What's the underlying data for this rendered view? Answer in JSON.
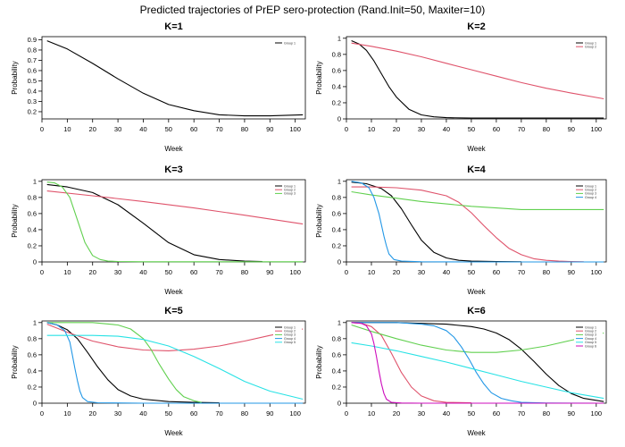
{
  "title": "Predicted trajectories of PrEP sero-protection (Rand.Init=50, Maxiter=10)",
  "colors": {
    "group1": "#000000",
    "group2": "#DF536B",
    "group3": "#61D04F",
    "group4": "#2297E6",
    "group5": "#28E2E5",
    "group6": "#CD0BBC"
  },
  "chart_data": [
    {
      "type": "line",
      "title": "K=1",
      "xlabel": "Week",
      "ylabel": "Probability",
      "xlim": [
        0,
        104
      ],
      "ylim": [
        0.13,
        0.93
      ],
      "xticks": [
        0,
        10,
        20,
        30,
        40,
        50,
        60,
        70,
        80,
        90,
        100
      ],
      "yticks": [
        0.2,
        0.3,
        0.4,
        0.5,
        0.6,
        0.7,
        0.8,
        0.9
      ],
      "ytick_labels": [
        "0.2",
        "0.3",
        "0.4",
        "0.5",
        "0.6",
        "0.7",
        "0.8",
        "0.9"
      ],
      "legend_position": "top-right",
      "series": [
        {
          "name": "Group 1",
          "color": "#000000",
          "x": [
            2,
            10,
            20,
            30,
            40,
            50,
            60,
            70,
            80,
            90,
            103
          ],
          "y": [
            0.89,
            0.81,
            0.67,
            0.52,
            0.38,
            0.27,
            0.21,
            0.17,
            0.16,
            0.16,
            0.17
          ]
        }
      ]
    },
    {
      "type": "line",
      "title": "K=2",
      "xlabel": "Week",
      "ylabel": "Probability",
      "xlim": [
        0,
        104
      ],
      "ylim": [
        0,
        1.02
      ],
      "xticks": [
        0,
        10,
        20,
        30,
        40,
        50,
        60,
        70,
        80,
        90,
        100
      ],
      "yticks": [
        0,
        0.2,
        0.4,
        0.6,
        0.8,
        1
      ],
      "ytick_labels": [
        "0",
        "0.2",
        "0.4",
        "0.6",
        "0.8",
        "1"
      ],
      "legend_position": "top-right",
      "series": [
        {
          "name": "Group 1",
          "color": "#000000",
          "x": [
            2,
            5,
            8,
            11,
            14,
            17,
            20,
            25,
            30,
            35,
            40,
            50,
            60,
            70,
            80,
            90,
            103
          ],
          "y": [
            0.97,
            0.93,
            0.85,
            0.72,
            0.56,
            0.4,
            0.27,
            0.12,
            0.05,
            0.025,
            0.015,
            0.01,
            0.01,
            0.01,
            0.01,
            0.01,
            0.01
          ]
        },
        {
          "name": "Group 2",
          "color": "#DF536B",
          "x": [
            2,
            10,
            20,
            30,
            40,
            50,
            60,
            70,
            80,
            90,
            103
          ],
          "y": [
            0.94,
            0.9,
            0.84,
            0.77,
            0.69,
            0.61,
            0.53,
            0.45,
            0.38,
            0.32,
            0.25
          ]
        }
      ]
    },
    {
      "type": "line",
      "title": "K=3",
      "xlabel": "Week",
      "ylabel": "Probability",
      "xlim": [
        0,
        104
      ],
      "ylim": [
        0,
        1.02
      ],
      "xticks": [
        0,
        10,
        20,
        30,
        40,
        50,
        60,
        70,
        80,
        90,
        100
      ],
      "yticks": [
        0,
        0.2,
        0.4,
        0.6,
        0.8,
        1
      ],
      "ytick_labels": [
        "0",
        "0.2",
        "0.4",
        "0.6",
        "0.8",
        "1"
      ],
      "legend_position": "top-right",
      "series": [
        {
          "name": "Group 1",
          "color": "#000000",
          "x": [
            2,
            10,
            20,
            30,
            40,
            50,
            60,
            70,
            80,
            87
          ],
          "y": [
            0.96,
            0.93,
            0.86,
            0.71,
            0.48,
            0.24,
            0.09,
            0.03,
            0.01,
            0.005
          ]
        },
        {
          "name": "Group 2",
          "color": "#DF536B",
          "x": [
            2,
            20,
            40,
            60,
            80,
            103
          ],
          "y": [
            0.88,
            0.82,
            0.75,
            0.67,
            0.58,
            0.47
          ]
        },
        {
          "name": "Group 3",
          "color": "#61D04F",
          "x": [
            2,
            5,
            8,
            11,
            14,
            17,
            20,
            23,
            26,
            30,
            40,
            60,
            80,
            103
          ],
          "y": [
            0.99,
            0.98,
            0.93,
            0.8,
            0.52,
            0.24,
            0.08,
            0.03,
            0.01,
            0.005,
            0.002,
            0.002,
            0.002,
            0.002
          ]
        }
      ]
    },
    {
      "type": "line",
      "title": "K=4",
      "xlabel": "Week",
      "ylabel": "Probability",
      "xlim": [
        0,
        104
      ],
      "ylim": [
        0,
        1.02
      ],
      "xticks": [
        0,
        10,
        20,
        30,
        40,
        50,
        60,
        70,
        80,
        90,
        100
      ],
      "yticks": [
        0,
        0.2,
        0.4,
        0.6,
        0.8,
        1
      ],
      "ytick_labels": [
        "0",
        "0.2",
        "0.4",
        "0.6",
        "0.8",
        "1"
      ],
      "legend_position": "top-right",
      "series": [
        {
          "name": "Group 1",
          "color": "#000000",
          "x": [
            2,
            8,
            14,
            18,
            22,
            26,
            30,
            35,
            40,
            45,
            50,
            60,
            70
          ],
          "y": [
            0.99,
            0.97,
            0.91,
            0.82,
            0.66,
            0.46,
            0.27,
            0.12,
            0.05,
            0.02,
            0.01,
            0.005,
            0.002
          ]
        },
        {
          "name": "Group 2",
          "color": "#DF536B",
          "x": [
            2,
            10,
            20,
            30,
            40,
            45,
            50,
            55,
            60,
            65,
            70,
            75,
            80,
            85,
            90,
            95
          ],
          "y": [
            0.93,
            0.93,
            0.92,
            0.89,
            0.82,
            0.74,
            0.61,
            0.45,
            0.3,
            0.17,
            0.09,
            0.04,
            0.02,
            0.01,
            0.005,
            0.002
          ]
        },
        {
          "name": "Group 3",
          "color": "#61D04F",
          "x": [
            2,
            10,
            20,
            30,
            40,
            50,
            60,
            70,
            80,
            90,
            103
          ],
          "y": [
            0.87,
            0.83,
            0.79,
            0.75,
            0.72,
            0.69,
            0.67,
            0.65,
            0.65,
            0.65,
            0.65
          ]
        },
        {
          "name": "Group 4",
          "color": "#2297E6",
          "x": [
            2,
            6,
            9,
            11,
            13,
            14,
            15,
            16,
            17,
            19,
            22,
            30,
            50,
            103
          ],
          "y": [
            1.0,
            0.98,
            0.92,
            0.8,
            0.6,
            0.46,
            0.32,
            0.2,
            0.1,
            0.03,
            0.01,
            0.002,
            0.0,
            0.0
          ]
        }
      ]
    },
    {
      "type": "line",
      "title": "K=5",
      "xlabel": "Week",
      "ylabel": "Probability",
      "xlim": [
        0,
        104
      ],
      "ylim": [
        0,
        1.02
      ],
      "xticks": [
        0,
        10,
        20,
        30,
        40,
        50,
        60,
        70,
        80,
        90,
        100
      ],
      "yticks": [
        0,
        0.2,
        0.4,
        0.6,
        0.8,
        1
      ],
      "ytick_labels": [
        "0",
        "0.2",
        "0.4",
        "0.6",
        "0.8",
        "1"
      ],
      "legend_position": "top-right",
      "series": [
        {
          "name": "Group 1",
          "color": "#000000",
          "x": [
            2,
            6,
            10,
            14,
            18,
            22,
            26,
            30,
            35,
            40,
            50,
            60,
            70
          ],
          "y": [
            1.0,
            0.97,
            0.91,
            0.8,
            0.63,
            0.45,
            0.29,
            0.17,
            0.09,
            0.05,
            0.02,
            0.01,
            0.005
          ]
        },
        {
          "name": "Group 2",
          "color": "#DF536B",
          "x": [
            2,
            10,
            20,
            30,
            40,
            50,
            60,
            70,
            80,
            90,
            103
          ],
          "y": [
            0.98,
            0.88,
            0.77,
            0.7,
            0.66,
            0.65,
            0.67,
            0.71,
            0.77,
            0.84,
            0.92
          ]
        },
        {
          "name": "Group 3",
          "color": "#61D04F",
          "x": [
            2,
            10,
            20,
            30,
            35,
            40,
            43,
            46,
            50,
            53,
            56,
            60,
            63
          ],
          "y": [
            1.0,
            1.0,
            1.0,
            0.97,
            0.92,
            0.8,
            0.67,
            0.5,
            0.3,
            0.17,
            0.08,
            0.03,
            0.01
          ]
        },
        {
          "name": "Group 4",
          "color": "#2297E6",
          "x": [
            2,
            6,
            9,
            11,
            12,
            13,
            14,
            15,
            16,
            18,
            22,
            40,
            103
          ],
          "y": [
            1.0,
            0.97,
            0.9,
            0.76,
            0.6,
            0.43,
            0.28,
            0.15,
            0.07,
            0.02,
            0.005,
            0.0,
            0.0
          ]
        },
        {
          "name": "Group 5",
          "color": "#28E2E5",
          "x": [
            2,
            10,
            20,
            30,
            40,
            50,
            60,
            70,
            80,
            90,
            103
          ],
          "y": [
            0.84,
            0.84,
            0.84,
            0.83,
            0.79,
            0.71,
            0.58,
            0.43,
            0.27,
            0.15,
            0.05
          ]
        }
      ]
    },
    {
      "type": "line",
      "title": "K=6",
      "xlabel": "Week",
      "ylabel": "Probability",
      "xlim": [
        0,
        104
      ],
      "ylim": [
        0,
        1.02
      ],
      "xticks": [
        0,
        10,
        20,
        30,
        40,
        50,
        60,
        70,
        80,
        90,
        100
      ],
      "yticks": [
        0,
        0.2,
        0.4,
        0.6,
        0.8,
        1
      ],
      "ytick_labels": [
        "0",
        "0.2",
        "0.4",
        "0.6",
        "0.8",
        "1"
      ],
      "legend_position": "top-right",
      "series": [
        {
          "name": "Group 1",
          "color": "#000000",
          "x": [
            2,
            20,
            40,
            50,
            55,
            60,
            65,
            70,
            75,
            80,
            85,
            90,
            95,
            103
          ],
          "y": [
            1.0,
            1.0,
            0.98,
            0.95,
            0.92,
            0.87,
            0.79,
            0.67,
            0.52,
            0.36,
            0.22,
            0.12,
            0.06,
            0.02
          ]
        },
        {
          "name": "Group 2",
          "color": "#DF536B",
          "x": [
            2,
            6,
            10,
            14,
            18,
            22,
            26,
            30,
            35,
            40,
            50
          ],
          "y": [
            1.0,
            0.99,
            0.95,
            0.84,
            0.62,
            0.38,
            0.2,
            0.09,
            0.03,
            0.01,
            0.005
          ]
        },
        {
          "name": "Group 3",
          "color": "#61D04F",
          "x": [
            2,
            10,
            20,
            30,
            40,
            50,
            60,
            70,
            80,
            90,
            103
          ],
          "y": [
            0.97,
            0.89,
            0.8,
            0.72,
            0.66,
            0.63,
            0.63,
            0.66,
            0.71,
            0.78,
            0.87
          ]
        },
        {
          "name": "Group 4",
          "color": "#2297E6",
          "x": [
            2,
            20,
            30,
            35,
            40,
            43,
            46,
            49,
            52,
            55,
            58,
            62,
            66,
            70,
            80,
            103
          ],
          "y": [
            1.0,
            1.0,
            0.98,
            0.96,
            0.9,
            0.82,
            0.7,
            0.55,
            0.38,
            0.24,
            0.13,
            0.06,
            0.03,
            0.01,
            0.002,
            0.0
          ]
        },
        {
          "name": "Group 5",
          "color": "#28E2E5",
          "x": [
            2,
            10,
            20,
            30,
            40,
            50,
            60,
            70,
            80,
            90,
            103
          ],
          "y": [
            0.75,
            0.71,
            0.65,
            0.58,
            0.51,
            0.43,
            0.35,
            0.27,
            0.2,
            0.13,
            0.06
          ]
        },
        {
          "name": "Group 6",
          "color": "#CD0BBC",
          "x": [
            2,
            6,
            8,
            10,
            11,
            12,
            13,
            14,
            15,
            16,
            18,
            22,
            30,
            103
          ],
          "y": [
            1.0,
            0.99,
            0.96,
            0.86,
            0.74,
            0.58,
            0.4,
            0.24,
            0.12,
            0.05,
            0.01,
            0.002,
            0.0,
            0.0
          ]
        }
      ]
    }
  ]
}
